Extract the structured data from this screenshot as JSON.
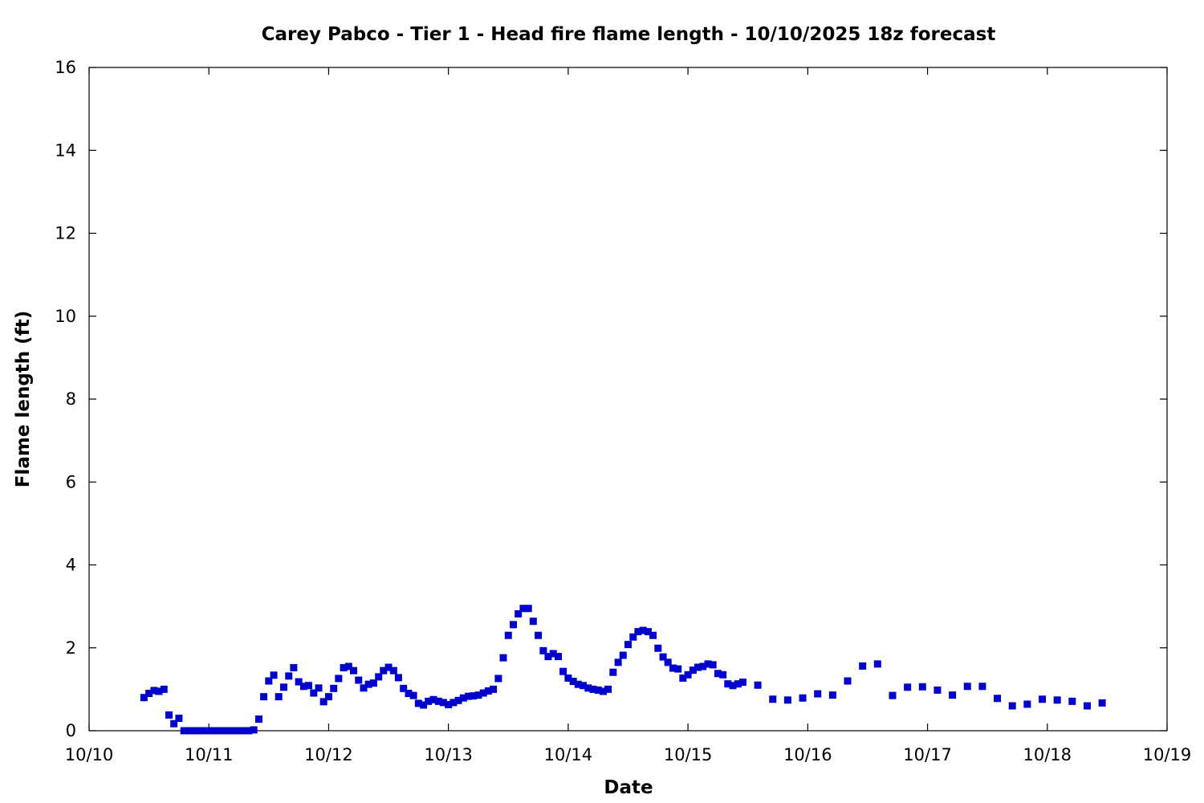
{
  "chart_data": {
    "type": "scatter",
    "title": "Carey Pabco - Tier 1 - Head fire flame length - 10/10/2025 18z forecast",
    "xlabel": "Date",
    "ylabel": "Flame length (ft)",
    "x_unit": "days after 10/10 00:00",
    "x_ticks": [
      "10/10",
      "10/11",
      "10/12",
      "10/13",
      "10/14",
      "10/15",
      "10/16",
      "10/17",
      "10/18",
      "10/19"
    ],
    "y_ticks": [
      "0",
      "2",
      "4",
      "6",
      "8",
      "10",
      "12",
      "14",
      "16"
    ],
    "xlim": [
      0,
      9
    ],
    "ylim": [
      0,
      16
    ],
    "grid": false,
    "marker_color": "#0000cc",
    "x": [
      0.458,
      0.5,
      0.542,
      0.583,
      0.625,
      0.667,
      0.708,
      0.75,
      0.792,
      0.833,
      0.875,
      0.917,
      0.958,
      1.0,
      1.042,
      1.083,
      1.125,
      1.167,
      1.208,
      1.25,
      1.292,
      1.333,
      1.375,
      1.417,
      1.458,
      1.5,
      1.542,
      1.583,
      1.625,
      1.667,
      1.708,
      1.75,
      1.792,
      1.833,
      1.875,
      1.917,
      1.958,
      2.0,
      2.042,
      2.083,
      2.125,
      2.167,
      2.208,
      2.25,
      2.292,
      2.333,
      2.375,
      2.417,
      2.458,
      2.5,
      2.542,
      2.583,
      2.625,
      2.667,
      2.708,
      2.75,
      2.792,
      2.833,
      2.875,
      2.917,
      2.958,
      3.0,
      3.042,
      3.083,
      3.125,
      3.167,
      3.208,
      3.25,
      3.292,
      3.333,
      3.375,
      3.417,
      3.458,
      3.5,
      3.542,
      3.583,
      3.625,
      3.667,
      3.708,
      3.75,
      3.792,
      3.833,
      3.875,
      3.917,
      3.958,
      4.0,
      4.042,
      4.083,
      4.125,
      4.167,
      4.208,
      4.25,
      4.292,
      4.333,
      4.375,
      4.417,
      4.458,
      4.5,
      4.542,
      4.583,
      4.625,
      4.667,
      4.708,
      4.75,
      4.792,
      4.833,
      4.875,
      4.917,
      4.958,
      5.0,
      5.042,
      5.083,
      5.125,
      5.167,
      5.208,
      5.25,
      5.292,
      5.333,
      5.375,
      5.417,
      5.458,
      5.583,
      5.708,
      5.833,
      5.958,
      6.083,
      6.208,
      6.333,
      6.458,
      6.583,
      6.708,
      6.833,
      6.958,
      7.083,
      7.208,
      7.333,
      7.458,
      7.583,
      7.708,
      7.833,
      7.958,
      8.083,
      8.208,
      8.333,
      8.458
    ],
    "y": [
      0.8,
      0.9,
      0.97,
      0.95,
      1.0,
      0.38,
      0.17,
      0.3,
      0.0,
      0.0,
      0.0,
      0.0,
      0.0,
      0.0,
      0.0,
      0.0,
      0.0,
      0.0,
      0.0,
      0.0,
      0.0,
      0.0,
      0.02,
      0.28,
      0.82,
      1.2,
      1.34,
      0.82,
      1.05,
      1.32,
      1.52,
      1.18,
      1.07,
      1.09,
      0.91,
      1.03,
      0.7,
      0.82,
      1.02,
      1.26,
      1.52,
      1.55,
      1.45,
      1.22,
      1.03,
      1.12,
      1.15,
      1.3,
      1.45,
      1.53,
      1.45,
      1.28,
      1.02,
      0.9,
      0.85,
      0.66,
      0.62,
      0.71,
      0.75,
      0.71,
      0.68,
      0.63,
      0.68,
      0.73,
      0.79,
      0.83,
      0.84,
      0.86,
      0.91,
      0.96,
      1.0,
      1.26,
      1.76,
      2.3,
      2.56,
      2.82,
      2.95,
      2.95,
      2.64,
      2.3,
      1.93,
      1.79,
      1.86,
      1.79,
      1.43,
      1.27,
      1.19,
      1.12,
      1.09,
      1.03,
      1.0,
      0.98,
      0.95,
      1.0,
      1.41,
      1.65,
      1.82,
      2.08,
      2.26,
      2.39,
      2.42,
      2.39,
      2.3,
      1.99,
      1.78,
      1.65,
      1.51,
      1.49,
      1.27,
      1.35,
      1.46,
      1.53,
      1.55,
      1.61,
      1.59,
      1.38,
      1.35,
      1.13,
      1.09,
      1.13,
      1.17,
      1.1,
      0.76,
      0.74,
      0.79,
      0.89,
      0.86,
      1.2,
      1.56,
      1.61,
      0.85,
      1.05,
      1.06,
      0.98,
      0.86,
      1.07,
      1.07,
      0.78,
      0.6,
      0.64,
      0.76,
      0.74,
      0.71,
      0.6,
      0.67
    ]
  }
}
